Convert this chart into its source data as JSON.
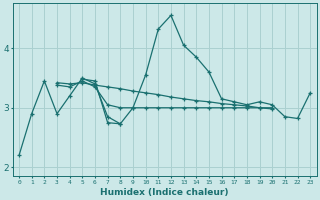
{
  "xlabel": "Humidex (Indice chaleur)",
  "ylabel": "",
  "background_color": "#cce8e8",
  "grid_color": "#aad0d0",
  "line_color": "#1a7070",
  "x_ticks": [
    0,
    1,
    2,
    3,
    4,
    5,
    6,
    7,
    8,
    9,
    10,
    11,
    12,
    13,
    14,
    15,
    16,
    17,
    18,
    19,
    20,
    21,
    22,
    23
  ],
  "ylim": [
    1.85,
    4.75
  ],
  "xlim": [
    -0.5,
    23.5
  ],
  "series": [
    [
      2.2,
      2.9,
      3.45,
      2.9,
      3.2,
      3.5,
      3.4,
      2.85,
      2.73,
      3.0,
      3.55,
      4.32,
      4.55,
      4.05,
      3.85,
      3.6,
      3.15,
      3.1,
      3.05,
      3.1,
      3.05,
      2.85,
      2.82,
      3.25
    ],
    [
      null,
      null,
      null,
      3.42,
      3.4,
      3.42,
      3.38,
      3.35,
      3.32,
      3.28,
      3.25,
      3.22,
      3.18,
      3.15,
      3.12,
      3.1,
      3.07,
      3.05,
      3.03,
      3.0,
      2.98,
      null,
      null,
      null
    ],
    [
      null,
      null,
      null,
      3.38,
      3.35,
      3.45,
      3.35,
      3.05,
      3.0,
      3.0,
      3.0,
      3.0,
      3.0,
      3.0,
      3.0,
      3.0,
      3.0,
      3.0,
      3.0,
      3.0,
      3.0,
      null,
      null,
      null
    ],
    [
      null,
      null,
      null,
      null,
      null,
      3.48,
      3.45,
      2.75,
      2.73,
      null,
      null,
      null,
      null,
      null,
      null,
      null,
      null,
      null,
      null,
      null,
      null,
      null,
      null,
      null
    ]
  ]
}
